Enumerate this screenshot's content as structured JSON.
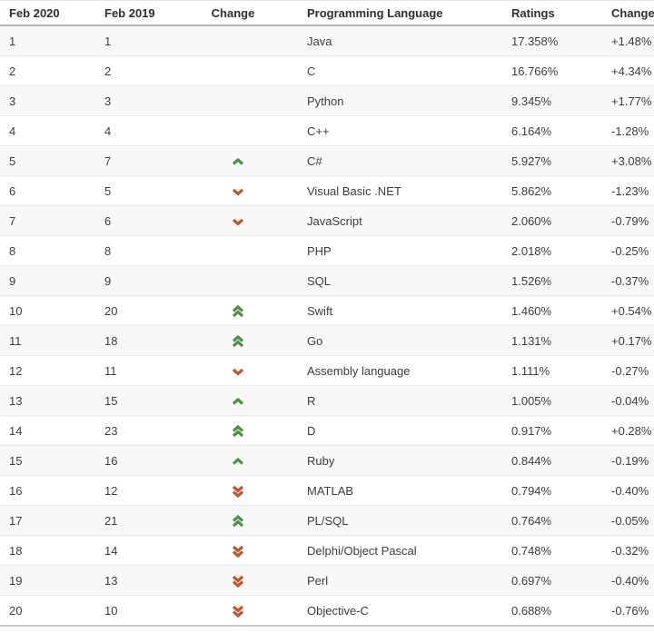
{
  "table": {
    "columns": [
      {
        "label": "Feb 2020"
      },
      {
        "label": "Feb 2019"
      },
      {
        "label": "Change"
      },
      {
        "label": "Programming Language"
      },
      {
        "label": "Ratings"
      },
      {
        "label": "Change"
      }
    ],
    "rows": [
      {
        "rank_2020": "1",
        "rank_2019": "1",
        "change": "none",
        "language": "Java",
        "ratings": "17.358%",
        "change_pct": "+1.48%"
      },
      {
        "rank_2020": "2",
        "rank_2019": "2",
        "change": "none",
        "language": "C",
        "ratings": "16.766%",
        "change_pct": "+4.34%"
      },
      {
        "rank_2020": "3",
        "rank_2019": "3",
        "change": "none",
        "language": "Python",
        "ratings": "9.345%",
        "change_pct": "+1.77%"
      },
      {
        "rank_2020": "4",
        "rank_2019": "4",
        "change": "none",
        "language": "C++",
        "ratings": "6.164%",
        "change_pct": "-1.28%"
      },
      {
        "rank_2020": "5",
        "rank_2019": "7",
        "change": "up",
        "language": "C#",
        "ratings": "5.927%",
        "change_pct": "+3.08%"
      },
      {
        "rank_2020": "6",
        "rank_2019": "5",
        "change": "down",
        "language": "Visual Basic .NET",
        "ratings": "5.862%",
        "change_pct": "-1.23%"
      },
      {
        "rank_2020": "7",
        "rank_2019": "6",
        "change": "down",
        "language": "JavaScript",
        "ratings": "2.060%",
        "change_pct": "-0.79%"
      },
      {
        "rank_2020": "8",
        "rank_2019": "8",
        "change": "none",
        "language": "PHP",
        "ratings": "2.018%",
        "change_pct": "-0.25%"
      },
      {
        "rank_2020": "9",
        "rank_2019": "9",
        "change": "none",
        "language": "SQL",
        "ratings": "1.526%",
        "change_pct": "-0.37%"
      },
      {
        "rank_2020": "10",
        "rank_2019": "20",
        "change": "up-double",
        "language": "Swift",
        "ratings": "1.460%",
        "change_pct": "+0.54%"
      },
      {
        "rank_2020": "11",
        "rank_2019": "18",
        "change": "up-double",
        "language": "Go",
        "ratings": "1.131%",
        "change_pct": "+0.17%"
      },
      {
        "rank_2020": "12",
        "rank_2019": "11",
        "change": "down",
        "language": "Assembly language",
        "ratings": "1.111%",
        "change_pct": "-0.27%"
      },
      {
        "rank_2020": "13",
        "rank_2019": "15",
        "change": "up",
        "language": "R",
        "ratings": "1.005%",
        "change_pct": "-0.04%"
      },
      {
        "rank_2020": "14",
        "rank_2019": "23",
        "change": "up-double",
        "language": "D",
        "ratings": "0.917%",
        "change_pct": "+0.28%"
      },
      {
        "rank_2020": "15",
        "rank_2019": "16",
        "change": "up",
        "language": "Ruby",
        "ratings": "0.844%",
        "change_pct": "-0.19%"
      },
      {
        "rank_2020": "16",
        "rank_2019": "12",
        "change": "down-double",
        "language": "MATLAB",
        "ratings": "0.794%",
        "change_pct": "-0.40%"
      },
      {
        "rank_2020": "17",
        "rank_2019": "21",
        "change": "up-double",
        "language": "PL/SQL",
        "ratings": "0.764%",
        "change_pct": "-0.05%"
      },
      {
        "rank_2020": "18",
        "rank_2019": "14",
        "change": "down-double",
        "language": "Delphi/Object Pascal",
        "ratings": "0.748%",
        "change_pct": "-0.32%"
      },
      {
        "rank_2020": "19",
        "rank_2019": "13",
        "change": "down-double",
        "language": "Perl",
        "ratings": "0.697%",
        "change_pct": "-0.40%"
      },
      {
        "rank_2020": "20",
        "rank_2019": "10",
        "change": "down-double",
        "language": "Objective-C",
        "ratings": "0.688%",
        "change_pct": "-0.76%"
      }
    ]
  },
  "colors": {
    "arrow_up": "#4c9246",
    "arrow_down": "#c1552d",
    "stripe_row": "#f8f8f8"
  }
}
